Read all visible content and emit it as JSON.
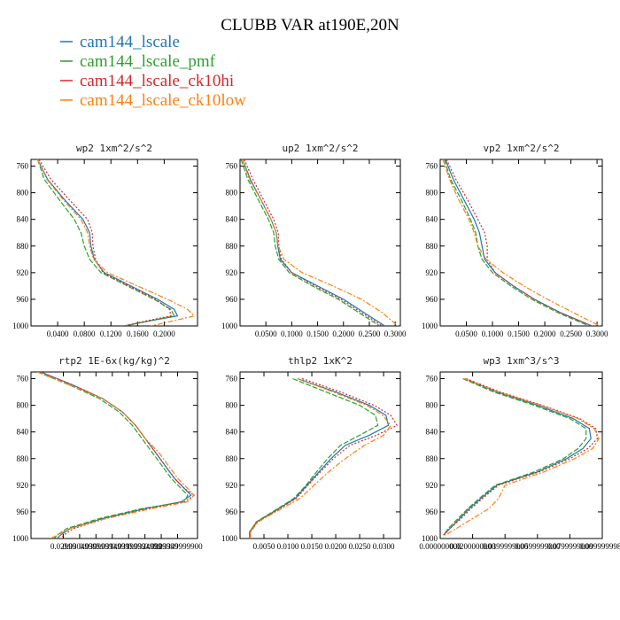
{
  "figure": {
    "title": "CLUBB VAR at190E,20N"
  },
  "legend": [
    {
      "name": "cam144_lscale",
      "color": "#1f77b4"
    },
    {
      "name": "cam144_lscale_pmf",
      "color": "#2ca02c"
    },
    {
      "name": "cam144_lscale_ck10hi",
      "color": "#d62728"
    },
    {
      "name": "cam144_lscale_ck10low",
      "color": "#ff7f0e"
    }
  ],
  "chart_data": [
    {
      "type": "line",
      "title": "wp2  1xm^2/s^2",
      "xlim": [
        0.0,
        0.25
      ],
      "ylim": [
        750,
        1000
      ],
      "y_inverted": true,
      "yticks": [
        "760",
        "800",
        "840",
        "880",
        "920",
        "960",
        "1000"
      ],
      "xticks": [
        {
          "v": 0.04,
          "label": "0.0400"
        },
        {
          "v": 0.08,
          "label": "0.0800"
        },
        {
          "v": 0.12,
          "label": "0.1200"
        },
        {
          "v": 0.16,
          "label": "0.1600"
        },
        {
          "v": 0.2,
          "label": "0.2000"
        }
      ],
      "y": [
        750,
        780,
        810,
        840,
        860,
        880,
        900,
        920,
        940,
        960,
        975,
        985,
        992,
        1000
      ],
      "series": [
        {
          "name": "cam144_lscale",
          "x": [
            0.01,
            0.025,
            0.05,
            0.078,
            0.088,
            0.09,
            0.095,
            0.11,
            0.15,
            0.19,
            0.215,
            0.22,
            0.18,
            0.14
          ]
        },
        {
          "name": "cam144_lscale_pmf",
          "x": [
            0.01,
            0.02,
            0.042,
            0.065,
            0.075,
            0.08,
            0.088,
            0.105,
            0.145,
            0.185,
            0.21,
            0.215,
            0.18,
            0.14
          ]
        },
        {
          "name": "cam144_lscale_ck10hi",
          "x": [
            0.012,
            0.03,
            0.057,
            0.085,
            0.092,
            0.093,
            0.097,
            0.108,
            0.147,
            0.187,
            0.208,
            0.21,
            0.175,
            0.14
          ]
        },
        {
          "name": "cam144_lscale_ck10low",
          "x": [
            0.01,
            0.024,
            0.048,
            0.075,
            0.085,
            0.088,
            0.094,
            0.115,
            0.16,
            0.205,
            0.235,
            0.245,
            0.215,
            0.18
          ]
        }
      ]
    },
    {
      "type": "line",
      "title": "up2  1xm^2/s^2",
      "xlim": [
        0.0,
        0.31
      ],
      "ylim": [
        750,
        1000
      ],
      "y_inverted": true,
      "yticks": [
        "760",
        "800",
        "840",
        "880",
        "920",
        "960",
        "1000"
      ],
      "xticks": [
        {
          "v": 0.05,
          "label": "0.0500"
        },
        {
          "v": 0.1,
          "label": "0.1000"
        },
        {
          "v": 0.15,
          "label": "0.1500"
        },
        {
          "v": 0.2,
          "label": "0.2000"
        },
        {
          "v": 0.25,
          "label": "0.2500"
        },
        {
          "v": 0.3,
          "label": "0.3000"
        }
      ],
      "y": [
        750,
        780,
        810,
        840,
        860,
        880,
        900,
        920,
        940,
        960,
        980,
        1000
      ],
      "series": [
        {
          "name": "cam144_lscale",
          "x": [
            0.005,
            0.02,
            0.04,
            0.06,
            0.07,
            0.073,
            0.078,
            0.1,
            0.15,
            0.2,
            0.24,
            0.28
          ]
        },
        {
          "name": "cam144_lscale_pmf",
          "x": [
            0.002,
            0.015,
            0.035,
            0.055,
            0.065,
            0.068,
            0.075,
            0.095,
            0.14,
            0.19,
            0.23,
            0.27
          ]
        },
        {
          "name": "cam144_lscale_ck10hi",
          "x": [
            0.008,
            0.025,
            0.045,
            0.065,
            0.074,
            0.075,
            0.08,
            0.1,
            0.145,
            0.195,
            0.235,
            0.275
          ]
        },
        {
          "name": "cam144_lscale_ck10low",
          "x": [
            0.005,
            0.018,
            0.04,
            0.06,
            0.07,
            0.074,
            0.085,
            0.12,
            0.18,
            0.235,
            0.275,
            0.305
          ]
        }
      ]
    },
    {
      "type": "line",
      "title": "vp2  1xm^2/s^2",
      "xlim": [
        0.0,
        0.31
      ],
      "ylim": [
        750,
        1000
      ],
      "y_inverted": true,
      "yticks": [
        "760",
        "800",
        "840",
        "880",
        "920",
        "960",
        "1000"
      ],
      "xticks": [
        {
          "v": 0.05,
          "label": "0.0500"
        },
        {
          "v": 0.1,
          "label": "0.1000"
        },
        {
          "v": 0.15,
          "label": "0.1500"
        },
        {
          "v": 0.2,
          "label": "0.2000"
        },
        {
          "v": 0.25,
          "label": "0.2500"
        },
        {
          "v": 0.3,
          "label": "0.3000"
        }
      ],
      "y": [
        750,
        780,
        810,
        840,
        860,
        880,
        900,
        920,
        940,
        960,
        980,
        1000
      ],
      "series": [
        {
          "name": "cam144_lscale",
          "x": [
            0.01,
            0.025,
            0.045,
            0.065,
            0.075,
            0.08,
            0.085,
            0.105,
            0.14,
            0.18,
            0.23,
            0.29
          ]
        },
        {
          "name": "cam144_lscale_pmf",
          "x": [
            0.008,
            0.02,
            0.04,
            0.058,
            0.068,
            0.072,
            0.08,
            0.1,
            0.135,
            0.175,
            0.225,
            0.285
          ]
        },
        {
          "name": "cam144_lscale_ck10hi",
          "x": [
            0.012,
            0.03,
            0.052,
            0.072,
            0.085,
            0.09,
            0.09,
            0.105,
            0.14,
            0.18,
            0.23,
            0.29
          ]
        },
        {
          "name": "cam144_lscale_ck10low",
          "x": [
            0.005,
            0.018,
            0.035,
            0.055,
            0.065,
            0.072,
            0.088,
            0.12,
            0.16,
            0.205,
            0.255,
            0.305
          ]
        }
      ]
    },
    {
      "type": "line",
      "title": "rtp2  1E-6x(kg/kg)^2",
      "xlim": [
        0.029,
        0.0341
      ],
      "ylim": [
        750,
        1000
      ],
      "y_inverted": true,
      "yticks": [
        "760",
        "800",
        "840",
        "880",
        "920",
        "960",
        "1000"
      ],
      "xticks": [
        {
          "v": 0.02999,
          "label": "0.02999"
        },
        {
          "v": 0.03049,
          "label": "0.0304999"
        },
        {
          "v": 0.03099,
          "label": "0.0309999"
        },
        {
          "v": 0.03149,
          "label": "0.0314999"
        },
        {
          "v": 0.03199,
          "label": "0.0319999"
        },
        {
          "v": 0.03249,
          "label": "0.0324999"
        },
        {
          "v": 0.03299,
          "label": "0.0329999"
        },
        {
          "v": 0.03349,
          "label": "0.03349999900"
        }
      ],
      "y": [
        750,
        770,
        790,
        810,
        830,
        850,
        870,
        890,
        910,
        925,
        935,
        945,
        955,
        970,
        985,
        995,
        1000
      ],
      "series": [
        {
          "name": "cam144_lscale",
          "x": [
            0.0293,
            0.0303,
            0.0312,
            0.0318,
            0.0322,
            0.0325,
            0.0328,
            0.0331,
            0.0334,
            0.0337,
            0.0339,
            0.0336,
            0.0325,
            0.0312,
            0.0302,
            0.0299,
            0.0298
          ]
        },
        {
          "name": "cam144_lscale_pmf",
          "x": [
            0.0292,
            0.0302,
            0.0311,
            0.0317,
            0.0321,
            0.0324,
            0.0327,
            0.033,
            0.0333,
            0.0336,
            0.0338,
            0.0337,
            0.0324,
            0.0311,
            0.0301,
            0.0298,
            0.0297
          ]
        },
        {
          "name": "cam144_lscale_ck10hi",
          "x": [
            0.0293,
            0.0303,
            0.0312,
            0.0318,
            0.0322,
            0.0325,
            0.0328,
            0.0331,
            0.0334,
            0.0337,
            0.034,
            0.0337,
            0.0326,
            0.0313,
            0.0303,
            0.03,
            0.0299
          ]
        },
        {
          "name": "cam144_lscale_ck10low",
          "x": [
            0.0292,
            0.0302,
            0.0312,
            0.0318,
            0.0322,
            0.0325,
            0.0329,
            0.0332,
            0.0335,
            0.0338,
            0.034,
            0.0338,
            0.0327,
            0.0313,
            0.0302,
            0.0298,
            0.0296
          ]
        }
      ]
    },
    {
      "type": "line",
      "title": "thlp2  1xK^2",
      "xlim": [
        0.0,
        0.0335
      ],
      "ylim": [
        750,
        1000
      ],
      "y_inverted": true,
      "yticks": [
        "760",
        "800",
        "840",
        "880",
        "920",
        "960",
        "1000"
      ],
      "xticks": [
        {
          "v": 0.005,
          "label": "0.0050"
        },
        {
          "v": 0.01,
          "label": "0.0100"
        },
        {
          "v": 0.015,
          "label": "0.0150"
        },
        {
          "v": 0.02,
          "label": "0.0200"
        },
        {
          "v": 0.025,
          "label": "0.0250"
        },
        {
          "v": 0.03,
          "label": "0.0300"
        }
      ],
      "y": [
        760,
        780,
        800,
        815,
        830,
        845,
        860,
        880,
        900,
        920,
        940,
        960,
        975,
        990,
        1000
      ],
      "series": [
        {
          "name": "cam144_lscale",
          "x": [
            0.012,
            0.02,
            0.027,
            0.0305,
            0.031,
            0.027,
            0.022,
            0.019,
            0.0165,
            0.014,
            0.0115,
            0.007,
            0.0035,
            0.002,
            0.002
          ]
        },
        {
          "name": "cam144_lscale_pmf",
          "x": [
            0.011,
            0.018,
            0.025,
            0.0283,
            0.0288,
            0.025,
            0.021,
            0.0183,
            0.016,
            0.0138,
            0.0112,
            0.0068,
            0.0034,
            0.002,
            0.002
          ]
        },
        {
          "name": "cam144_lscale_ck10hi",
          "x": [
            0.013,
            0.021,
            0.028,
            0.0315,
            0.0328,
            0.0285,
            0.023,
            0.0195,
            0.0168,
            0.0142,
            0.0117,
            0.0072,
            0.0036,
            0.0021,
            0.0021
          ]
        },
        {
          "name": "cam144_lscale_ck10low",
          "x": [
            0.012,
            0.0195,
            0.0265,
            0.0298,
            0.0315,
            0.03,
            0.026,
            0.022,
            0.0185,
            0.0155,
            0.0125,
            0.0075,
            0.0038,
            0.0022,
            0.0022
          ]
        }
      ]
    },
    {
      "type": "line",
      "title": "wp3  1xm^3/s^3",
      "xlim": [
        0.0,
        0.1
      ],
      "ylim": [
        750,
        1000
      ],
      "y_inverted": true,
      "yticks": [
        "760",
        "800",
        "840",
        "880",
        "920",
        "960",
        "1000"
      ],
      "xticks": [
        {
          "v": 0.0,
          "label": "0.000000000"
        },
        {
          "v": 0.02,
          "label": "0.0200000000"
        },
        {
          "v": 0.04,
          "label": "0.0399999000"
        },
        {
          "v": 0.06,
          "label": "0.0599999000"
        },
        {
          "v": 0.08,
          "label": "0.0799999000"
        },
        {
          "v": 0.1,
          "label": "0.0999999980"
        }
      ],
      "y": [
        760,
        780,
        800,
        820,
        835,
        850,
        865,
        880,
        900,
        920,
        940,
        955,
        970,
        985,
        995
      ],
      "series": [
        {
          "name": "cam144_lscale",
          "x": [
            0.015,
            0.035,
            0.06,
            0.082,
            0.092,
            0.093,
            0.088,
            0.078,
            0.06,
            0.035,
            0.025,
            0.018,
            0.012,
            0.006,
            0.002
          ]
        },
        {
          "name": "cam144_lscale_pmf",
          "x": [
            0.014,
            0.033,
            0.058,
            0.08,
            0.09,
            0.09,
            0.085,
            0.076,
            0.058,
            0.034,
            0.024,
            0.017,
            0.011,
            0.005,
            0.002
          ]
        },
        {
          "name": "cam144_lscale_ck10hi",
          "x": [
            0.016,
            0.037,
            0.063,
            0.086,
            0.096,
            0.097,
            0.091,
            0.08,
            0.061,
            0.036,
            0.026,
            0.019,
            0.013,
            0.006,
            0.002
          ]
        },
        {
          "name": "cam144_lscale_ck10low",
          "x": [
            0.015,
            0.036,
            0.062,
            0.085,
            0.095,
            0.098,
            0.094,
            0.083,
            0.064,
            0.04,
            0.036,
            0.03,
            0.02,
            0.01,
            0.003
          ]
        }
      ]
    }
  ]
}
